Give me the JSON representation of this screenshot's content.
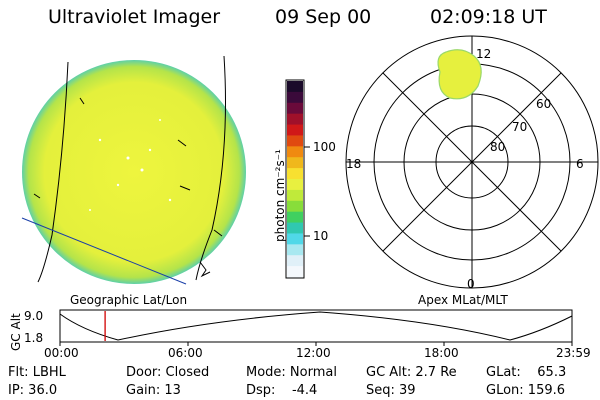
{
  "header": {
    "instrument": "Ultraviolet Imager",
    "date": "09 Sep 00",
    "time": "02:09:18 UT"
  },
  "earth_panel": {
    "caption": "Geographic Lat/Lon"
  },
  "polar_panel": {
    "caption": "Apex MLat/MLT",
    "mlt_labels": {
      "top": "12",
      "left": "18",
      "right": "6",
      "bottom": "0"
    },
    "mlat_labels": [
      "60",
      "70",
      "80"
    ]
  },
  "colorbar": {
    "unit_label": "photon cm⁻²s⁻¹",
    "ticks": [
      "100",
      "10"
    ],
    "colors": [
      "#1a0a2a",
      "#3a0a3a",
      "#6a0a3a",
      "#a0102a",
      "#d01818",
      "#e04a10",
      "#f08a10",
      "#f0b81c",
      "#f8e030",
      "#e8f040",
      "#c0ea3a",
      "#88dd3a",
      "#40d060",
      "#30c8b0",
      "#50d8e8",
      "#a8e8f0",
      "#e0f0f8",
      "#f4f8fc"
    ]
  },
  "orbit_plot": {
    "ylabel": "GC Alt",
    "y_ticks": [
      "9.0",
      "1.8"
    ],
    "x_ticks": [
      "00:00",
      "06:00",
      "12:00",
      "18:00",
      "23:59"
    ],
    "current_time_frac": 0.088
  },
  "status": {
    "flt": "Flt: LBHL",
    "ip": "IP: 36.0",
    "door": "Door: Closed",
    "gain": "Gain: 13",
    "mode": "Mode: Normal",
    "dsp": "Dsp:    -4.4",
    "gcalt": "GC Alt: 2.7 Re",
    "seq": "Seq: 39",
    "glat": "GLat:    65.3",
    "glon": "GLon: 159.6"
  }
}
